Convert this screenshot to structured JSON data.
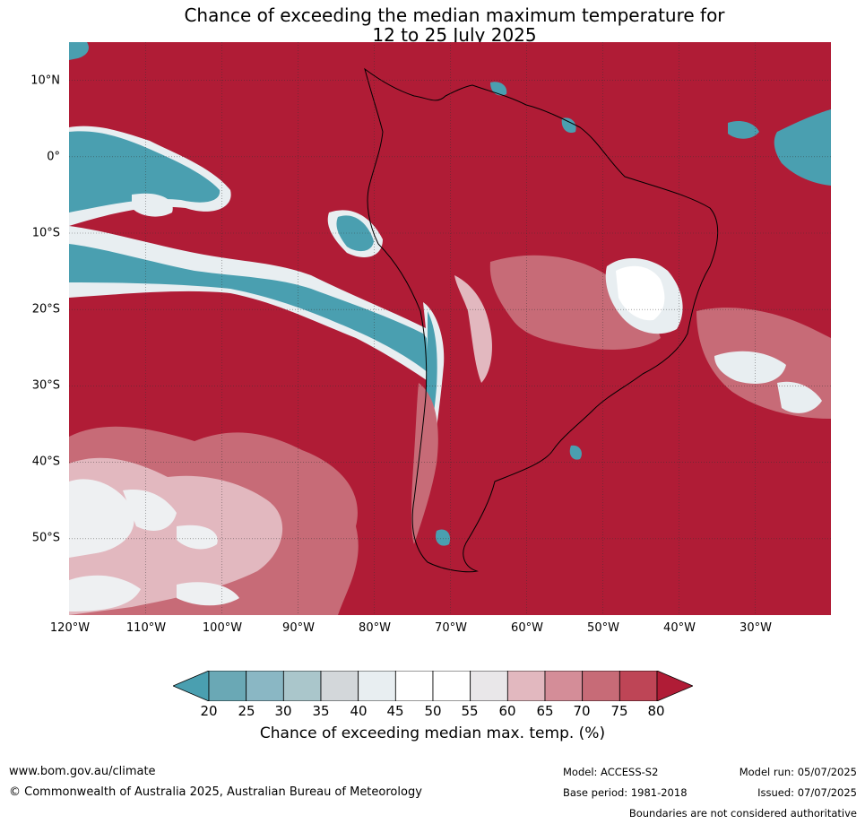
{
  "title": {
    "line1": "Chance of exceeding the median maximum temperature for",
    "line2": "12 to 25 July 2025"
  },
  "map": {
    "background_color": "#b01c36",
    "latitude_labels": [
      "10°N",
      "0°",
      "10°S",
      "20°S",
      "30°S",
      "40°S",
      "50°S"
    ],
    "longitude_labels": [
      "120°W",
      "110°W",
      "100°W",
      "90°W",
      "80°W",
      "70°W",
      "60°W",
      "50°W",
      "40°W",
      "30°W"
    ]
  },
  "colorbar": {
    "ticks": [
      "20",
      "25",
      "30",
      "35",
      "40",
      "45",
      "50",
      "55",
      "60",
      "65",
      "70",
      "75",
      "80"
    ],
    "colors": [
      "#4a9fb0",
      "#6aa8b5",
      "#8ab7c4",
      "#aac6cb",
      "#d3d7da",
      "#e8eef1",
      "#ffffff",
      "#ffffff",
      "#e9e7e9",
      "#e2b8bf",
      "#d48d98",
      "#c76b77",
      "#be4556",
      "#b01c36"
    ],
    "label": "Chance of exceeding median max. temp. (%)"
  },
  "footer": {
    "website": "www.bom.gov.au/climate",
    "copyright": "© Commonwealth of Australia 2025, Australian Bureau of Meteorology",
    "model": "Model: ACCESS-S2",
    "base_period": "Base period: 1981-2018",
    "model_run": "Model run: 05/07/2025",
    "issued": "Issued: 07/07/2025",
    "disclaimer": "Boundaries are not considered authoritative"
  }
}
